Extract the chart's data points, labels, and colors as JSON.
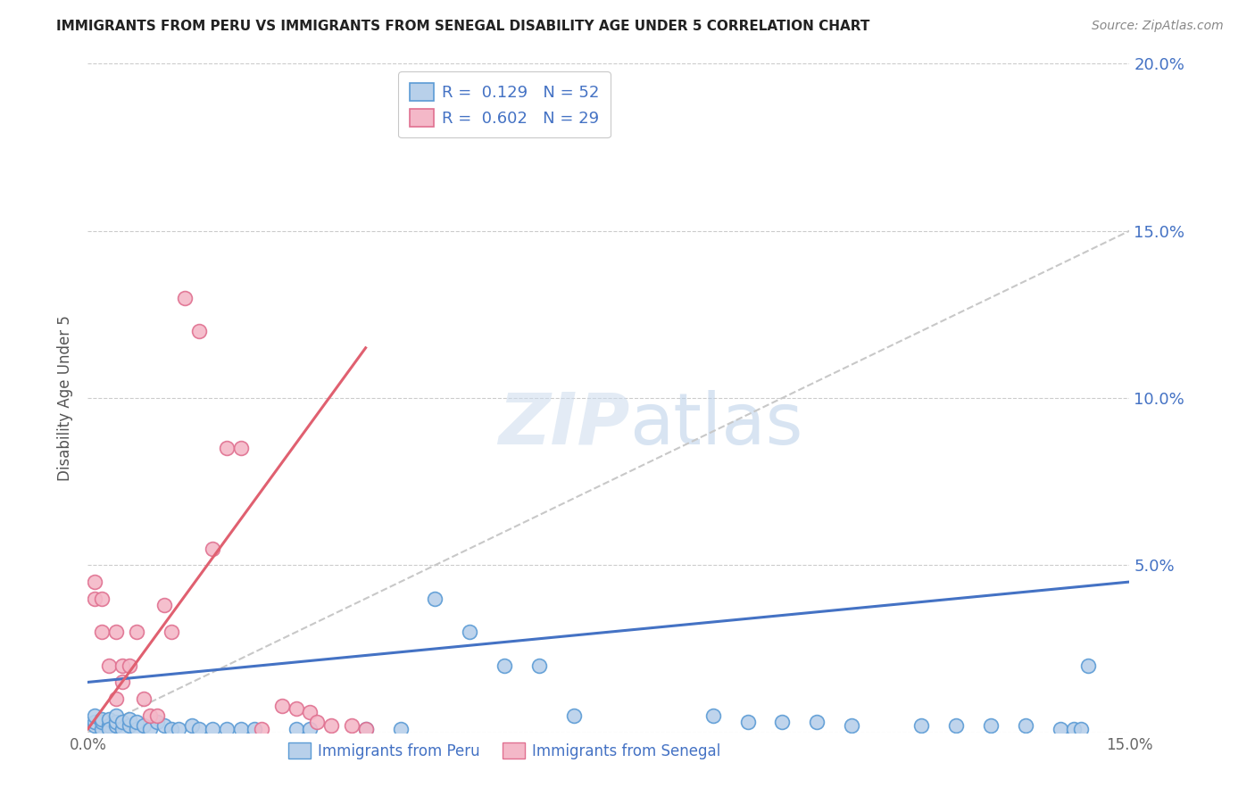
{
  "title": "IMMIGRANTS FROM PERU VS IMMIGRANTS FROM SENEGAL DISABILITY AGE UNDER 5 CORRELATION CHART",
  "source": "Source: ZipAtlas.com",
  "ylabel": "Disability Age Under 5",
  "legend_peru_r": "0.129",
  "legend_peru_n": "52",
  "legend_senegal_r": "0.602",
  "legend_senegal_n": "29",
  "xlim": [
    0.0,
    0.15
  ],
  "ylim": [
    0.0,
    0.2
  ],
  "yticks": [
    0.0,
    0.05,
    0.1,
    0.15,
    0.2
  ],
  "ytick_labels": [
    "",
    "5.0%",
    "10.0%",
    "15.0%",
    "20.0%"
  ],
  "xticks": [
    0.0,
    0.05,
    0.1,
    0.15
  ],
  "xtick_labels": [
    "0.0%",
    "",
    "",
    "15.0%"
  ],
  "color_peru_face": "#b8d0ea",
  "color_peru_edge": "#5b9bd5",
  "color_senegal_face": "#f4b8c8",
  "color_senegal_edge": "#e07090",
  "color_peru_line": "#4472c4",
  "color_senegal_line": "#e06070",
  "color_diag_line": "#c8c8c8",
  "color_right_axis": "#4472c4",
  "peru_scatter_x": [
    0.001,
    0.001,
    0.001,
    0.002,
    0.002,
    0.002,
    0.003,
    0.003,
    0.003,
    0.004,
    0.004,
    0.004,
    0.005,
    0.005,
    0.006,
    0.006,
    0.007,
    0.007,
    0.008,
    0.009,
    0.01,
    0.011,
    0.012,
    0.013,
    0.015,
    0.016,
    0.018,
    0.02,
    0.022,
    0.024,
    0.03,
    0.032,
    0.04,
    0.045,
    0.05,
    0.055,
    0.06,
    0.065,
    0.07,
    0.09,
    0.095,
    0.1,
    0.105,
    0.11,
    0.12,
    0.125,
    0.13,
    0.135,
    0.14,
    0.142,
    0.143,
    0.144
  ],
  "peru_scatter_y": [
    0.002,
    0.003,
    0.005,
    0.001,
    0.003,
    0.004,
    0.002,
    0.004,
    0.001,
    0.002,
    0.003,
    0.005,
    0.001,
    0.003,
    0.002,
    0.004,
    0.001,
    0.003,
    0.002,
    0.001,
    0.003,
    0.002,
    0.001,
    0.001,
    0.002,
    0.001,
    0.001,
    0.001,
    0.001,
    0.001,
    0.001,
    0.001,
    0.001,
    0.001,
    0.04,
    0.03,
    0.02,
    0.02,
    0.005,
    0.005,
    0.003,
    0.003,
    0.003,
    0.002,
    0.002,
    0.002,
    0.002,
    0.002,
    0.001,
    0.001,
    0.001,
    0.02
  ],
  "senegal_scatter_x": [
    0.001,
    0.001,
    0.002,
    0.002,
    0.003,
    0.004,
    0.004,
    0.005,
    0.005,
    0.006,
    0.007,
    0.008,
    0.009,
    0.01,
    0.011,
    0.012,
    0.014,
    0.016,
    0.018,
    0.02,
    0.022,
    0.025,
    0.028,
    0.03,
    0.032,
    0.033,
    0.035,
    0.038,
    0.04
  ],
  "senegal_scatter_y": [
    0.04,
    0.045,
    0.04,
    0.03,
    0.02,
    0.01,
    0.03,
    0.02,
    0.015,
    0.02,
    0.03,
    0.01,
    0.005,
    0.005,
    0.038,
    0.03,
    0.13,
    0.12,
    0.055,
    0.085,
    0.085,
    0.001,
    0.008,
    0.007,
    0.006,
    0.003,
    0.002,
    0.002,
    0.001
  ],
  "peru_line_x": [
    0.0,
    0.15
  ],
  "peru_line_y": [
    0.015,
    0.045
  ],
  "senegal_line_x": [
    0.0,
    0.04
  ],
  "senegal_line_y": [
    0.001,
    0.115
  ],
  "diag_line_x": [
    0.0,
    0.15
  ],
  "diag_line_y": [
    0.0,
    0.15
  ]
}
